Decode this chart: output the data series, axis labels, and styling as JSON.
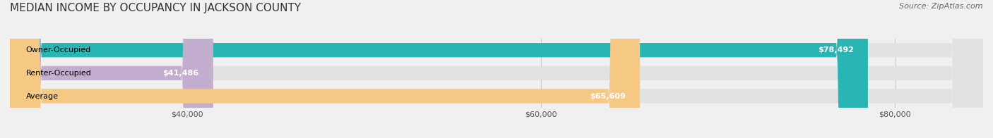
{
  "title": "MEDIAN INCOME BY OCCUPANCY IN JACKSON COUNTY",
  "source": "Source: ZipAtlas.com",
  "categories": [
    "Owner-Occupied",
    "Renter-Occupied",
    "Average"
  ],
  "values": [
    78492,
    41486,
    65609
  ],
  "labels": [
    "$78,492",
    "$41,486",
    "$65,609"
  ],
  "bar_colors": [
    "#2ab5b5",
    "#c4aed0",
    "#f5c884"
  ],
  "background_color": "#f0f0f0",
  "bar_bg_color": "#e2e2e2",
  "xlim_min": 30000,
  "xlim_max": 85000,
  "xticks": [
    40000,
    60000,
    80000
  ],
  "xtick_labels": [
    "$40,000",
    "$60,000",
    "$80,000"
  ],
  "title_fontsize": 11,
  "source_fontsize": 8,
  "label_fontsize": 8,
  "bar_label_fontsize": 8,
  "cat_fontsize": 8
}
